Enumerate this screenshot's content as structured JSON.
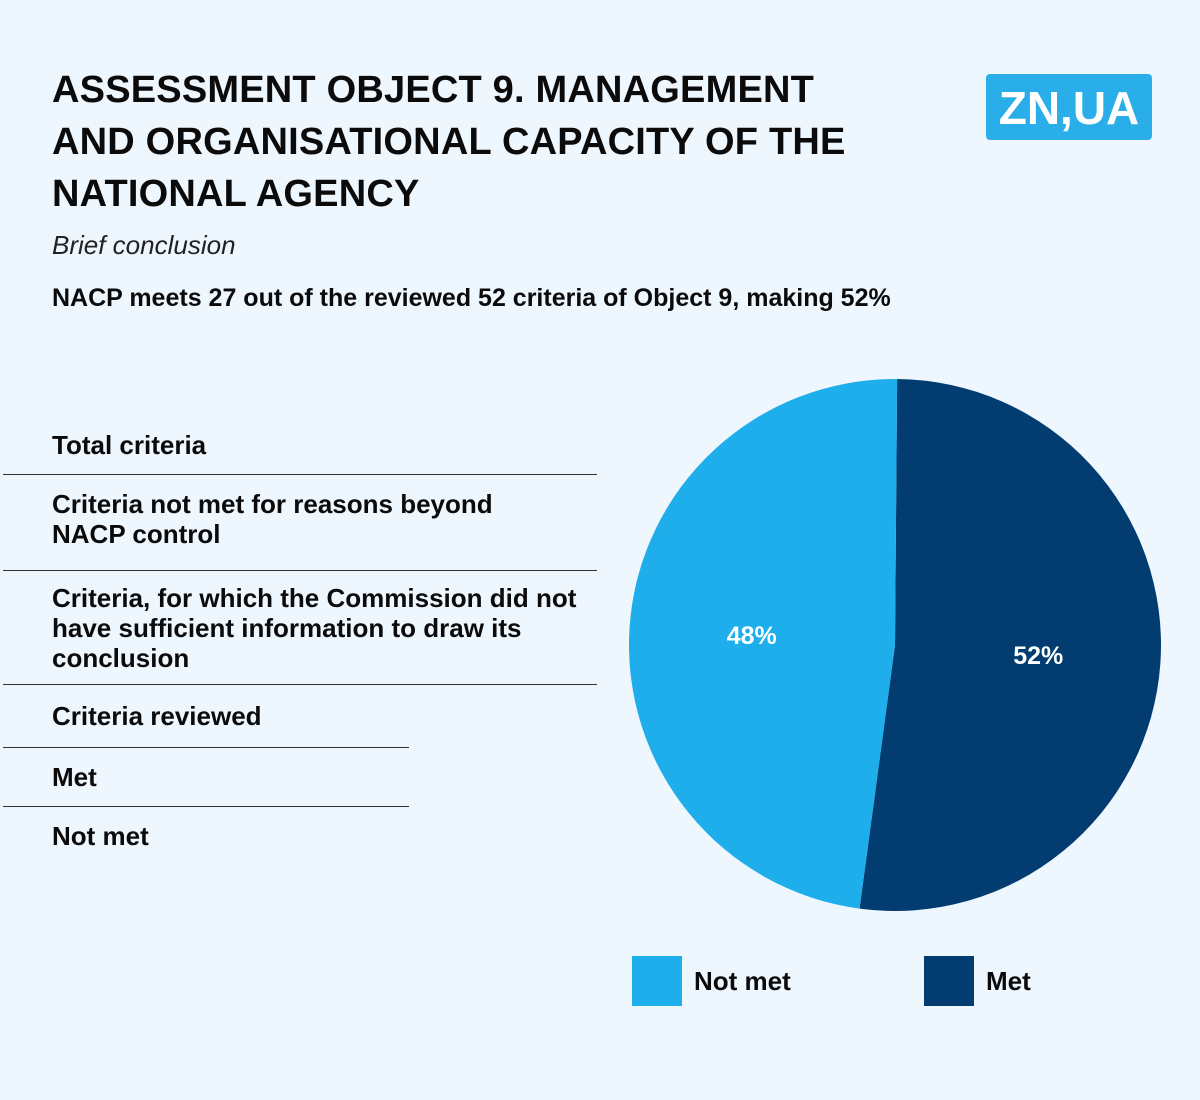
{
  "header": {
    "title": "ASSESSMENT OBJECT 9. MANAGEMENT AND ORGANISATIONAL CAPACITY OF THE NATIONAL AGENCY",
    "subtitle": "Brief conclusion",
    "summary": "NACP meets 27 out of the reviewed 52 criteria of Object 9, making 52%",
    "logo_text": "ZN,UA"
  },
  "criteria": [
    {
      "label": "Total criteria"
    },
    {
      "label": "Criteria not met for reasons beyond NACP control"
    },
    {
      "label": "Criteria, for which the Commission did not have sufficient information to draw its conclusion"
    },
    {
      "label": "Criteria reviewed"
    },
    {
      "label": "Met"
    },
    {
      "label": "Not met"
    }
  ],
  "colors": {
    "background": "#eef6fe",
    "not_met": "#1eaeec",
    "met": "#023c71",
    "logo": "#2aaeea"
  },
  "chart_data": {
    "type": "pie",
    "slices": [
      {
        "label": "Met",
        "value": 52,
        "display": "52%",
        "color": "#023c71"
      },
      {
        "label": "Not met",
        "value": 48,
        "display": "48%",
        "color": "#1eaeec"
      }
    ],
    "start_angle_deg": 0,
    "direction": "clockwise",
    "legend": {
      "position": "bottom",
      "items": [
        {
          "label": "Not met",
          "color": "#1eaeec"
        },
        {
          "label": "Met",
          "color": "#023c71"
        }
      ]
    }
  }
}
